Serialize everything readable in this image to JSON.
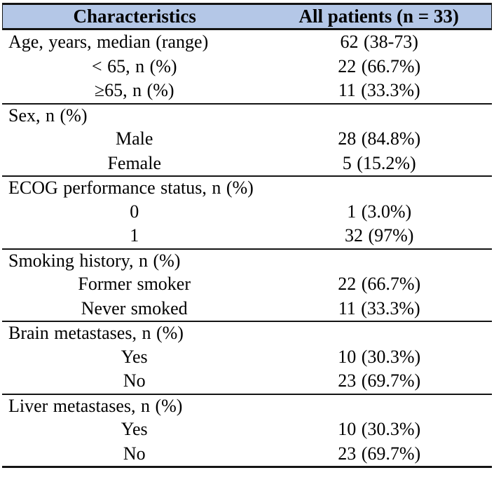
{
  "table": {
    "header": {
      "characteristics": "Characteristics",
      "all_patients": "All patients (n = 33)"
    },
    "header_bg_color": "#b4c7e7",
    "rule_color": "#141414",
    "rows": [
      {
        "label": "Age, years, median (range)",
        "value": "62 (38-73)",
        "style": "lead",
        "rule_above": false
      },
      {
        "label": "< 65, n (%)",
        "value": "22 (66.7%)",
        "style": "sub",
        "rule_above": false
      },
      {
        "label": "≥65, n (%)",
        "value": "11 (33.3%)",
        "style": "sub",
        "rule_above": false
      },
      {
        "label": "Sex, n (%)",
        "value": "",
        "style": "lead",
        "rule_above": true
      },
      {
        "label": "Male",
        "value": "28 (84.8%)",
        "style": "sub",
        "rule_above": false
      },
      {
        "label": "Female",
        "value": "5 (15.2%)",
        "style": "sub",
        "rule_above": false
      },
      {
        "label": "ECOG performance status, n (%)",
        "value": "",
        "style": "lead",
        "rule_above": true
      },
      {
        "label": "0",
        "value": "1 (3.0%)",
        "style": "sub",
        "rule_above": false
      },
      {
        "label": "1",
        "value": "32 (97%)",
        "style": "sub",
        "rule_above": false
      },
      {
        "label": "Smoking history, n (%)",
        "value": "",
        "style": "lead",
        "rule_above": true
      },
      {
        "label": "Former smoker",
        "value": "22 (66.7%)",
        "style": "sub",
        "rule_above": false
      },
      {
        "label": "Never smoked",
        "value": "11 (33.3%)",
        "style": "sub",
        "rule_above": false
      },
      {
        "label": "Brain metastases, n (%)",
        "value": "",
        "style": "lead",
        "rule_above": true
      },
      {
        "label": "Yes",
        "value": "10 (30.3%)",
        "style": "sub",
        "rule_above": false
      },
      {
        "label": "No",
        "value": "23 (69.7%)",
        "style": "sub",
        "rule_above": false
      },
      {
        "label": "Liver metastases, n (%)",
        "value": "",
        "style": "lead",
        "rule_above": true
      },
      {
        "label": "Yes",
        "value": "10 (30.3%)",
        "style": "sub",
        "rule_above": false
      },
      {
        "label": "No",
        "value": "23 (69.7%)",
        "style": "sub",
        "rule_above": false
      }
    ]
  }
}
